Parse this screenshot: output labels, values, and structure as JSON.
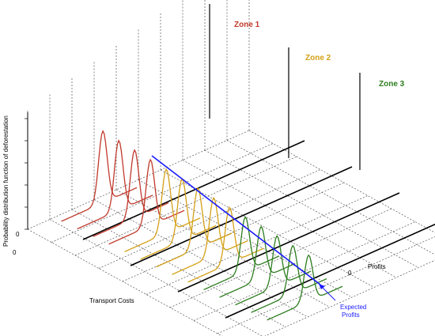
{
  "labels": {
    "y_axis": "Probability distribution function of deforestation",
    "x_axis": "Transport Costs",
    "z_axis": "Profits",
    "origin_left": "0",
    "origin_bottom": "0",
    "origin_right": "0",
    "expected_line": "Expected",
    "expected_line2": "Profits"
  },
  "zones": [
    {
      "name": "Zone 1",
      "color": "#c0392b"
    },
    {
      "name": "Zone 2",
      "color": "#d4a017"
    },
    {
      "name": "Zone 3",
      "color": "#2e7d1f"
    }
  ],
  "colors": {
    "expected": "#1a1aff",
    "axis": "#000000",
    "grid": "#555555"
  }
}
